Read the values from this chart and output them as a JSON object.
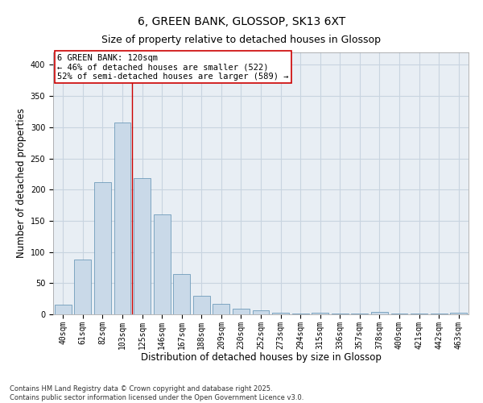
{
  "title_line1": "6, GREEN BANK, GLOSSOP, SK13 6XT",
  "title_line2": "Size of property relative to detached houses in Glossop",
  "xlabel": "Distribution of detached houses by size in Glossop",
  "ylabel": "Number of detached properties",
  "bar_color": "#c9d9e8",
  "bar_edge_color": "#5b8db0",
  "categories": [
    "40sqm",
    "61sqm",
    "82sqm",
    "103sqm",
    "125sqm",
    "146sqm",
    "167sqm",
    "188sqm",
    "209sqm",
    "230sqm",
    "252sqm",
    "273sqm",
    "294sqm",
    "315sqm",
    "336sqm",
    "357sqm",
    "378sqm",
    "400sqm",
    "421sqm",
    "442sqm",
    "463sqm"
  ],
  "values": [
    15,
    88,
    212,
    307,
    218,
    160,
    65,
    30,
    17,
    9,
    6,
    2,
    1,
    2,
    1,
    1,
    4,
    1,
    1,
    1,
    3
  ],
  "vline_x": 3.5,
  "annotation_text": "6 GREEN BANK: 120sqm\n← 46% of detached houses are smaller (522)\n52% of semi-detached houses are larger (589) →",
  "annotation_box_color": "#ffffff",
  "annotation_box_edge_color": "#cc0000",
  "vline_color": "#cc0000",
  "grid_color": "#c8d4e0",
  "background_color": "#e8eef4",
  "ylim": [
    0,
    420
  ],
  "yticks": [
    0,
    50,
    100,
    150,
    200,
    250,
    300,
    350,
    400
  ],
  "footnote": "Contains HM Land Registry data © Crown copyright and database right 2025.\nContains public sector information licensed under the Open Government Licence v3.0.",
  "title_fontsize": 10,
  "subtitle_fontsize": 9,
  "axis_label_fontsize": 8.5,
  "tick_fontsize": 7,
  "annotation_fontsize": 7.5,
  "footnote_fontsize": 6
}
